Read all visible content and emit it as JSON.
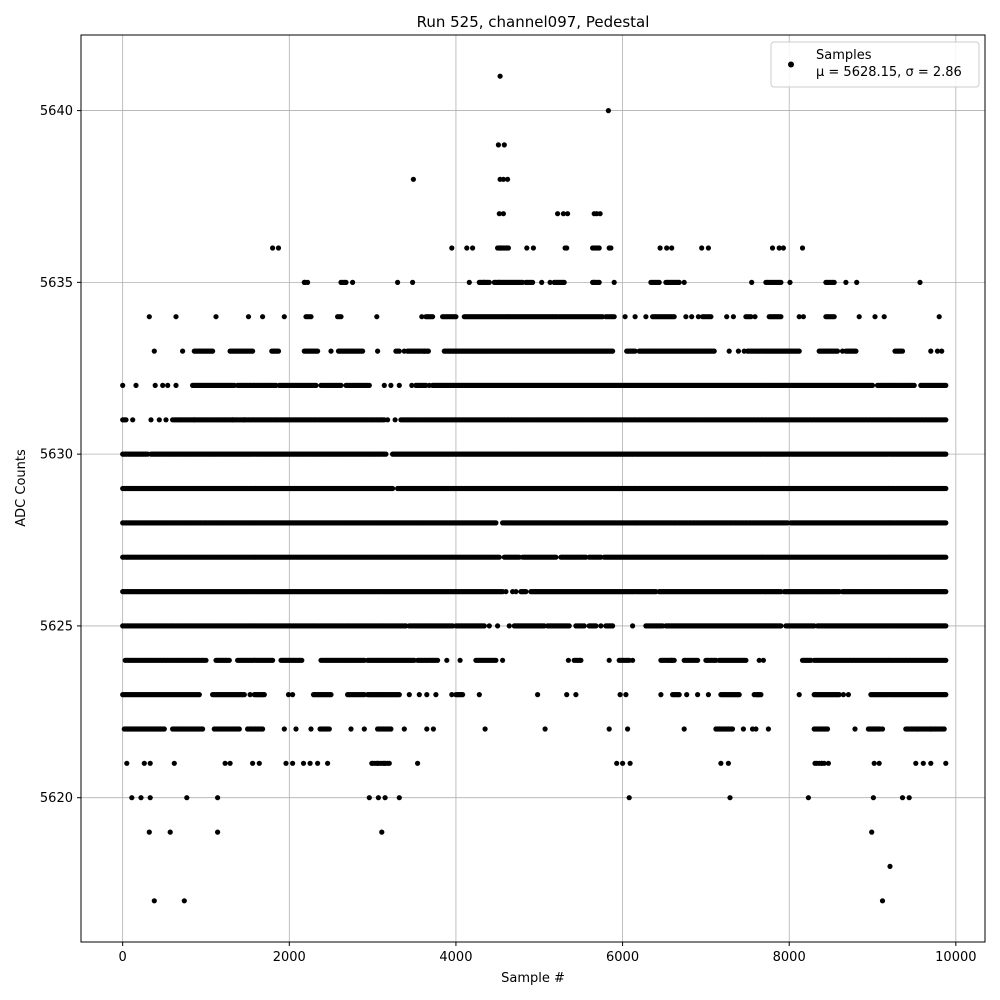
{
  "chart_data": {
    "type": "scatter",
    "title": "Run 525, channel097, Pedestal",
    "xlabel": "Sample #",
    "ylabel": "ADC Counts",
    "xlim": [
      -500,
      10350
    ],
    "ylim": [
      5615.8,
      5642.2
    ],
    "xticks": [
      0,
      2000,
      4000,
      6000,
      8000,
      10000
    ],
    "yticks": [
      5620,
      5625,
      5630,
      5635,
      5640
    ],
    "grid": true,
    "marker_color": "#000000",
    "legend": {
      "placement": "top-right",
      "entries": [
        {
          "name": "Samples",
          "stats": "μ = 5628.15, σ = 2.86"
        }
      ]
    },
    "series": [
      {
        "name": "Samples",
        "bands": [
          {
            "y": 5617,
            "x": [
              380,
              740,
              9120
            ]
          },
          {
            "y": 5618,
            "x": [
              9210
            ]
          },
          {
            "y": 5619,
            "x": [
              320,
              570,
              1140,
              3110,
              8990
            ]
          },
          {
            "y": 5620,
            "x": [
              110,
              220,
              330,
              770,
              1140,
              2960,
              3070,
              3150,
              3320,
              6080,
              7290,
              8230,
              9010,
              9360,
              9440
            ]
          },
          {
            "y": 5621,
            "x": [
              50,
              260,
              330,
              620,
              1230,
              1290,
              1560,
              1640,
              1960,
              2040,
              2170,
              2250,
              2340,
              2460,
              2990,
              3060,
              3140,
              3200,
              3540,
              5930,
              6000,
              6090,
              7180,
              7270,
              8310,
              8390,
              8470,
              9020,
              9080,
              9520,
              9610,
              9700,
              9880
            ],
            "ranges": [
              [
                3000,
                3180,
                8
              ],
              [
                8330,
                8420,
                4
              ]
            ]
          },
          {
            "y": 5622,
            "x": [
              1940,
              2080,
              2260,
              2480,
              2740,
              2900,
              3380,
              3650,
              3730,
              4350,
              5070,
              5840,
              6060,
              6740,
              7450,
              7560,
              7600,
              7750,
              8790,
              9120,
              9540,
              9700
            ],
            "ranges": [
              [
                20,
                500,
                40
              ],
              [
                600,
                960,
                25
              ],
              [
                1100,
                1400,
                15
              ],
              [
                1500,
                1680,
                12
              ],
              [
                2370,
                2460,
                6
              ],
              [
                3060,
                3220,
                10
              ],
              [
                7120,
                7320,
                14
              ],
              [
                8300,
                8460,
                12
              ],
              [
                8950,
                9090,
                12
              ],
              [
                9400,
                9860,
                28
              ]
            ]
          },
          {
            "y": 5623,
            "x": [
              1530,
              1990,
              2040,
              2290,
              3440,
              3560,
              3650,
              3760,
              3950,
              4280,
              4980,
              5330,
              5440,
              5970,
              6040,
              6460,
              6770,
              6900,
              7030,
              7630,
              8120,
              8650,
              8710
            ],
            "ranges": [
              [
                0,
                920,
                50
              ],
              [
                1080,
                1460,
                25
              ],
              [
                1580,
                1700,
                10
              ],
              [
                2300,
                2500,
                14
              ],
              [
                2700,
                2900,
                12
              ],
              [
                2940,
                3320,
                28
              ],
              [
                4000,
                4080,
                6
              ],
              [
                6600,
                6680,
                6
              ],
              [
                7180,
                7400,
                16
              ],
              [
                7580,
                7660,
                6
              ],
              [
                8300,
                8600,
                22
              ],
              [
                8980,
                9880,
                55
              ]
            ]
          },
          {
            "y": 5624,
            "x": [
              1000,
              3890,
              4050,
              4560,
              5350,
              5840,
              6120,
              6590,
              7640,
              7690
            ],
            "ranges": [
              [
                30,
                980,
                55
              ],
              [
                1120,
                1280,
                12
              ],
              [
                1380,
                1800,
                28
              ],
              [
                1900,
                2150,
                18
              ],
              [
                2380,
                2900,
                35
              ],
              [
                2940,
                3500,
                40
              ],
              [
                3540,
                3780,
                16
              ],
              [
                4240,
                4480,
                16
              ],
              [
                5420,
                5500,
                6
              ],
              [
                5960,
                6080,
                8
              ],
              [
                6460,
                6620,
                12
              ],
              [
                6740,
                6900,
                10
              ],
              [
                7000,
                7120,
                8
              ],
              [
                7160,
                7480,
                22
              ],
              [
                8160,
                8260,
                8
              ],
              [
                8300,
                9880,
                95
              ]
            ]
          },
          {
            "y": 5625,
            "x": [
              4400,
              4500,
              4640,
              5740,
              6120
            ],
            "ranges": [
              [
                0,
                3400,
                170
              ],
              [
                3440,
                3960,
                30
              ],
              [
                4000,
                4340,
                22
              ],
              [
                4700,
                5060,
                24
              ],
              [
                5100,
                5360,
                16
              ],
              [
                5440,
                5540,
                6
              ],
              [
                5600,
                5680,
                6
              ],
              [
                5800,
                5880,
                6
              ],
              [
                6280,
                6480,
                12
              ],
              [
                6520,
                7900,
                90
              ],
              [
                7960,
                8300,
                22
              ],
              [
                8340,
                9880,
                100
              ]
            ]
          },
          {
            "y": 5626,
            "x": [
              4600,
              4680,
              4720
            ],
            "ranges": [
              [
                0,
                4560,
                260
              ],
              [
                4780,
                4840,
                5
              ],
              [
                4900,
                6400,
                95
              ],
              [
                6440,
                7900,
                90
              ],
              [
                7940,
                8600,
                45
              ],
              [
                8640,
                9880,
                80
              ]
            ]
          },
          {
            "y": 5627,
            "x": [
              4800
            ],
            "ranges": [
              [
                0,
                4520,
                260
              ],
              [
                4580,
                4760,
                12
              ],
              [
                4820,
                5200,
                24
              ],
              [
                5260,
                5560,
                20
              ],
              [
                5600,
                5740,
                9
              ],
              [
                5780,
                9880,
                270
              ]
            ]
          },
          {
            "y": 5628,
            "x": [],
            "ranges": [
              [
                0,
                4480,
                280
              ],
              [
                4560,
                7980,
                210
              ],
              [
                8020,
                9880,
                120
              ]
            ]
          },
          {
            "y": 5629,
            "x": [],
            "ranges": [
              [
                0,
                3240,
                210
              ],
              [
                3300,
                9880,
                420
              ]
            ]
          },
          {
            "y": 5630,
            "x": [
              300
            ],
            "ranges": [
              [
                0,
                280,
                18
              ],
              [
                340,
                3160,
                170
              ],
              [
                3240,
                9880,
                420
              ]
            ]
          },
          {
            "y": 5631,
            "x": [
              120,
              340,
              440,
              520,
              600,
              860,
              1320,
              1460,
              3180,
              3270
            ],
            "ranges": [
              [
                0,
                40,
                4
              ],
              [
                620,
                3140,
                160
              ],
              [
                3340,
                9880,
                400
              ]
            ]
          },
          {
            "y": 5632,
            "x": [
              0,
              160,
              390,
              480,
              540,
              640,
              3140,
              3220,
              3320,
              3470,
              3680,
              9500
            ],
            "ranges": [
              [
                840,
                1340,
                32
              ],
              [
                1380,
                1840,
                28
              ],
              [
                1880,
                2320,
                26
              ],
              [
                2380,
                2620,
                14
              ],
              [
                2680,
                2960,
                16
              ],
              [
                3520,
                3640,
                8
              ],
              [
                3720,
                9000,
                340
              ],
              [
                9060,
                9480,
                26
              ],
              [
                9580,
                9880,
                18
              ]
            ]
          },
          {
            "y": 5633,
            "x": [
              380,
              720,
              2500,
              3060,
              3380,
              3620,
              3670,
              6150,
              7280,
              7390,
              7460,
              8640,
              9360,
              9700,
              9780,
              9830
            ],
            "ranges": [
              [
                860,
                1080,
                14
              ],
              [
                1290,
                1560,
                16
              ],
              [
                1790,
                1870,
                6
              ],
              [
                2180,
                2340,
                10
              ],
              [
                2590,
                2880,
                18
              ],
              [
                3280,
                3320,
                3
              ],
              [
                3420,
                3660,
                14
              ],
              [
                3860,
                5880,
                130
              ],
              [
                6050,
                6130,
                6
              ],
              [
                6200,
                7100,
                55
              ],
              [
                7500,
                7600,
                6
              ],
              [
                7620,
                8120,
                30
              ],
              [
                8360,
                8580,
                14
              ],
              [
                8680,
                8800,
                8
              ],
              [
                9270,
                9340,
                5
              ]
            ]
          },
          {
            "y": 5634,
            "x": [
              320,
              640,
              1120,
              1510,
              1680,
              1940,
              3050,
              3590,
              6030,
              6150,
              6280,
              6760,
              6830,
              6910,
              7250,
              7330,
              7590,
              8120,
              8170,
              8840,
              9030,
              9140,
              9800
            ],
            "ranges": [
              [
                2200,
                2260,
                4
              ],
              [
                2580,
                2620,
                3
              ],
              [
                3640,
                3720,
                6
              ],
              [
                3840,
                4000,
                10
              ],
              [
                4100,
                5220,
                70
              ],
              [
                5240,
                5760,
                32
              ],
              [
                5800,
                5900,
                6
              ],
              [
                6360,
                6620,
                16
              ],
              [
                6960,
                7060,
                6
              ],
              [
                7480,
                7540,
                4
              ],
              [
                7760,
                7900,
                10
              ],
              [
                8440,
                8540,
                7
              ]
            ]
          },
          {
            "y": 5635,
            "x": [
              2180,
              2760,
              3300,
              3480,
              4160,
              4340,
              4520,
              5030,
              5130,
              5660,
              5900,
              6740,
              7550,
              8010,
              8680,
              8810,
              9570
            ],
            "ranges": [
              [
                2190,
                2220,
                2
              ],
              [
                2620,
                2680,
                4
              ],
              [
                4280,
                4400,
                8
              ],
              [
                4460,
                4800,
                22
              ],
              [
                4840,
                4920,
                5
              ],
              [
                5180,
                5300,
                8
              ],
              [
                5640,
                5720,
                5
              ],
              [
                6340,
                6440,
                6
              ],
              [
                6520,
                6680,
                10
              ],
              [
                7720,
                7900,
                10
              ],
              [
                8440,
                8540,
                6
              ]
            ]
          },
          {
            "y": 5636,
            "x": [
              1800,
              1870,
              3950,
              4130,
              4200,
              4540,
              4630,
              4850,
              4930,
              5310,
              5330,
              5840,
              5860,
              6450,
              6530,
              6590,
              6950,
              7030,
              7800,
              7880,
              7930,
              8160
            ],
            "ranges": [
              [
                4500,
                4620,
                8
              ],
              [
                5640,
                5720,
                5
              ]
            ]
          },
          {
            "y": 5637,
            "x": [
              4520,
              4570,
              5220,
              5290,
              5340,
              5660,
              5690,
              5730
            ]
          },
          {
            "y": 5638,
            "x": [
              3490,
              4530,
              4570,
              4620
            ]
          },
          {
            "y": 5639,
            "x": [
              4510,
              4580
            ]
          },
          {
            "y": 5640,
            "x": [
              5830
            ]
          },
          {
            "y": 5641,
            "x": [
              4530
            ]
          }
        ]
      }
    ]
  }
}
